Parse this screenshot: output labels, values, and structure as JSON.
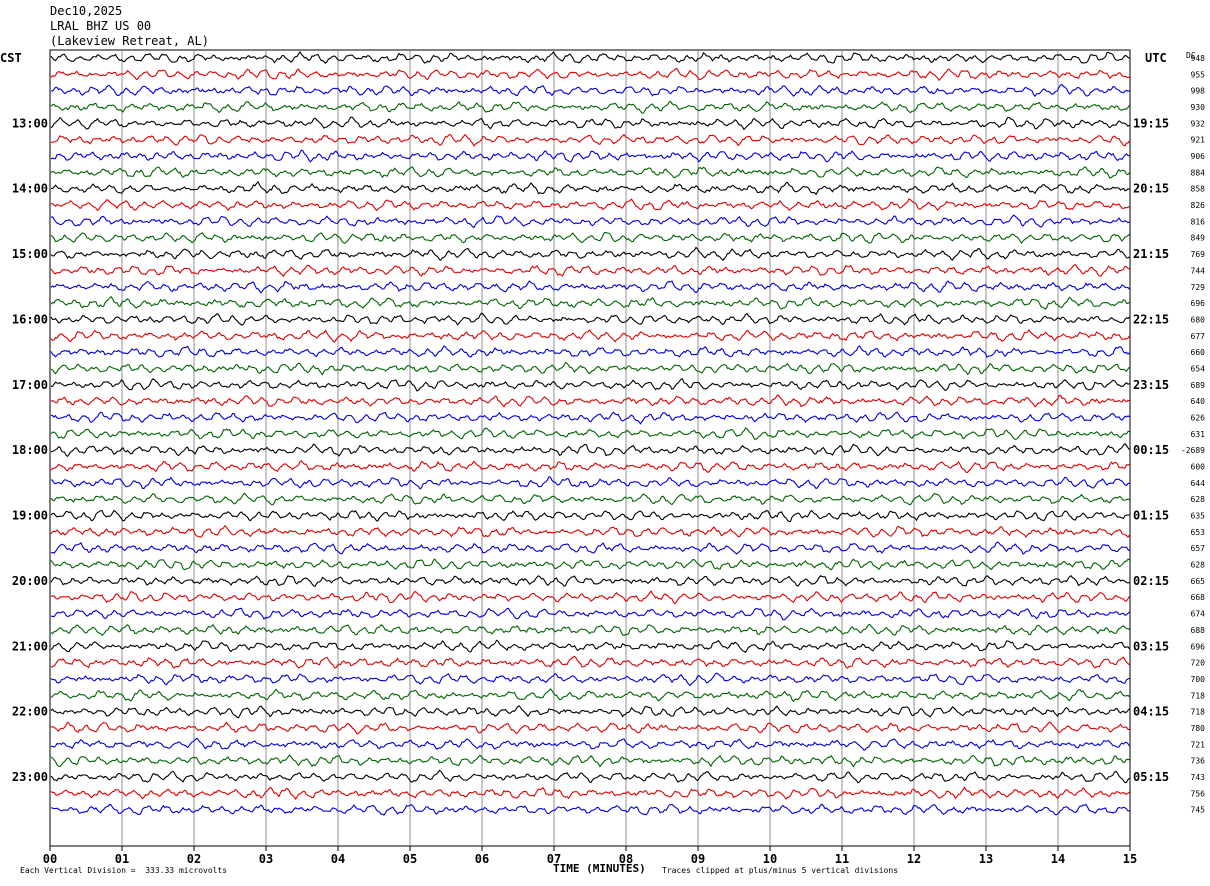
{
  "header": {
    "date": "Dec10,2025",
    "station": "LRAL BHZ US 00",
    "location": "(Lakeview Retreat, AL)"
  },
  "footer": {
    "scale_note": "Each Vertical Division =  333.33 microvolts",
    "clip_note": "Traces clipped at plus/minus 5 vertical divisions"
  },
  "chart_data": {
    "type": "line",
    "title": "",
    "left_axis_label": "CST",
    "right_axis_label": "UTC",
    "dc_label": "DC",
    "xlabel": "TIME (MINUTES)",
    "x_ticks": [
      "00",
      "01",
      "02",
      "03",
      "04",
      "05",
      "06",
      "07",
      "08",
      "09",
      "10",
      "11",
      "12",
      "13",
      "14",
      "15"
    ],
    "xlim": [
      0,
      15
    ],
    "grid": true,
    "trace_colors": [
      "#000000",
      "#dd0000",
      "#0000dd",
      "#006400"
    ],
    "left_hour_labels": [
      "13:00",
      "14:00",
      "15:00",
      "16:00",
      "17:00",
      "18:00",
      "19:00",
      "20:00",
      "21:00",
      "22:00",
      "23:00"
    ],
    "right_hour_labels": [
      "19:15",
      "20:15",
      "21:15",
      "22:15",
      "23:15",
      "00:15",
      "01:15",
      "02:15",
      "03:15",
      "04:15",
      "05:15"
    ],
    "dc_values": [
      "948",
      "955",
      "998",
      "930",
      "932",
      "921",
      "906",
      "884",
      "858",
      "826",
      "816",
      "849",
      "769",
      "744",
      "729",
      "696",
      "680",
      "677",
      "660",
      "654",
      "689",
      "640",
      "626",
      "631",
      "-2689",
      "600",
      "644",
      "628",
      "635",
      "653",
      "657",
      "628",
      "665",
      "668",
      "674",
      "688",
      "696",
      "720",
      "700",
      "718",
      "718",
      "780",
      "721",
      "736",
      "743",
      "756",
      "745"
    ]
  }
}
